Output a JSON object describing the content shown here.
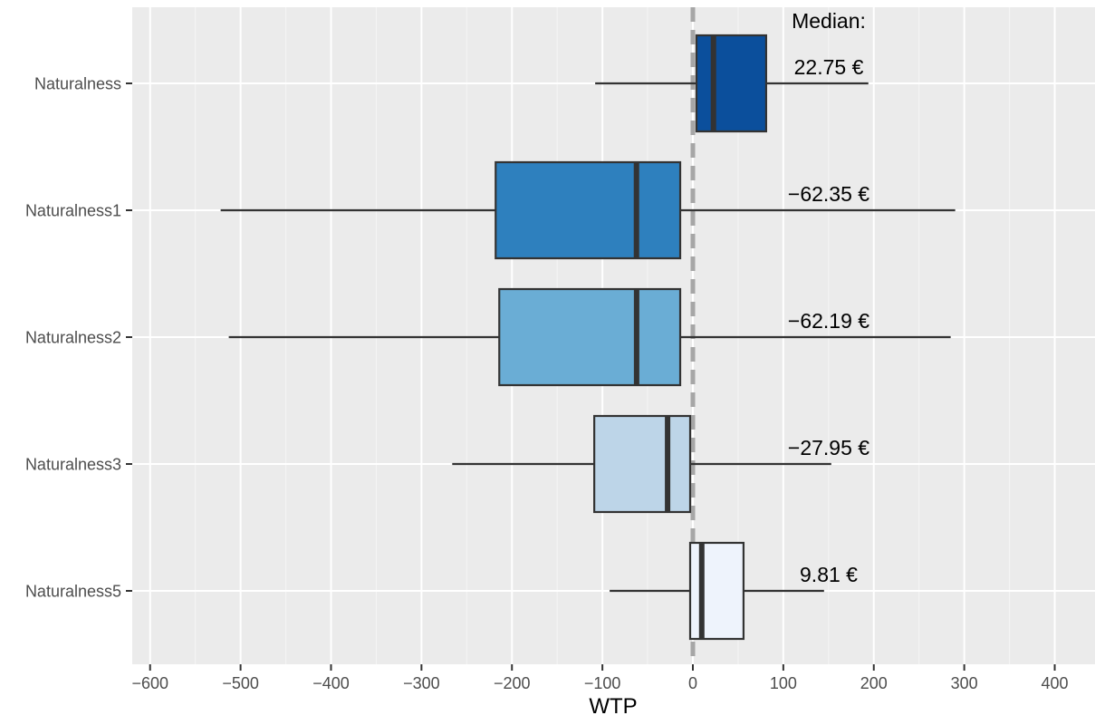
{
  "chart_data": {
    "type": "boxplot",
    "xlabel": "WTP",
    "ylabel": "",
    "xlim": [
      -620,
      420
    ],
    "xticks": [
      -600,
      -500,
      -400,
      -300,
      -200,
      -100,
      0,
      100,
      200,
      300,
      400
    ],
    "xtick_labels": [
      "−600",
      "−500",
      "−400",
      "−300",
      "−200",
      "−100",
      "0",
      "100",
      "200",
      "300",
      "400"
    ],
    "reference_line_x": 0,
    "grid": true,
    "median_header": "Median:",
    "boxes": [
      {
        "category": "Naturalness",
        "whisker_low": -108,
        "q1": 4,
        "median": 22.75,
        "q3": 81,
        "whisker_high": 194,
        "median_label": "22.75 €",
        "fill": "#0B4F9C"
      },
      {
        "category": "Naturalness1",
        "whisker_low": -522,
        "q1": -218,
        "median": -62.35,
        "q3": -14,
        "whisker_high": 290,
        "median_label": "−62.35 €",
        "fill": "#2E80BE"
      },
      {
        "category": "Naturalness2",
        "whisker_low": -513,
        "q1": -214,
        "median": -62.19,
        "q3": -14,
        "whisker_high": 285,
        "median_label": "−62.19 €",
        "fill": "#6AADD5"
      },
      {
        "category": "Naturalness3",
        "whisker_low": -266,
        "q1": -109,
        "median": -27.95,
        "q3": -3,
        "whisker_high": 153,
        "median_label": "−27.95 €",
        "fill": "#BDD5E8"
      },
      {
        "category": "Naturalness5",
        "whisker_low": -92,
        "q1": -3,
        "median": 9.81,
        "q3": 56,
        "whisker_high": 145,
        "median_label": "9.81 €",
        "fill": "#EEF3FC"
      }
    ]
  }
}
